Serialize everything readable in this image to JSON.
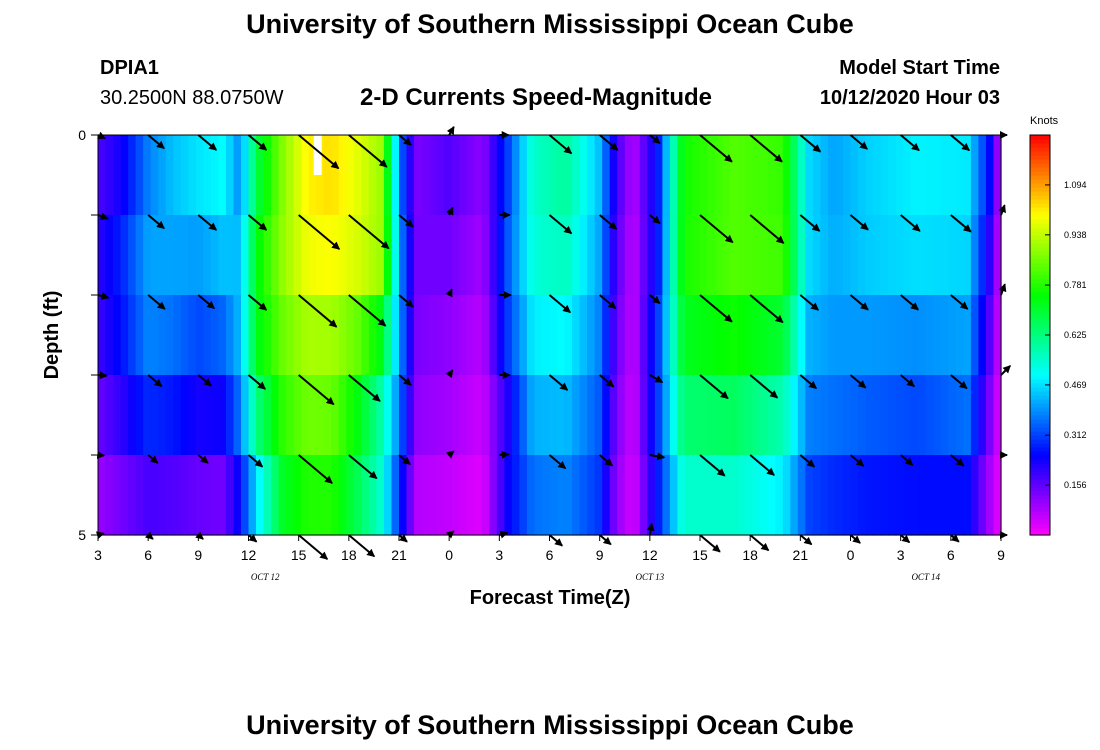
{
  "page": {
    "title_top": "University of Southern Mississippi Ocean Cube",
    "title_bottom": "University of Southern Mississippi Ocean Cube",
    "station_id": "DPIA1",
    "station_coords": "30.2500N 88.0750W",
    "chart_title": "2-D Currents Speed-Magnitude",
    "model_label": "Model Start Time",
    "model_time": "10/12/2020 Hour 03"
  },
  "chart_data": {
    "type": "heatmap",
    "title": "2-D Currents Speed-Magnitude",
    "xlabel": "Forecast Time(Z)",
    "ylabel": "Depth (ft)",
    "x_tick_labels": [
      "3",
      "6",
      "9",
      "12",
      "15",
      "18",
      "21",
      "0",
      "3",
      "6",
      "9",
      "12",
      "15",
      "18",
      "21",
      "0",
      "3",
      "6",
      "9"
    ],
    "x_range_hours": [
      0,
      54
    ],
    "date_labels": [
      {
        "text": "OCT 12",
        "hour": 10
      },
      {
        "text": "OCT 13",
        "hour": 33
      },
      {
        "text": "OCT 14",
        "hour": 49.5
      }
    ],
    "y_range": [
      0,
      5
    ],
    "y_tick_labels": [
      "0",
      "",
      "",
      "",
      "",
      "5"
    ],
    "colorbar": {
      "units": "Knots",
      "min": 0,
      "max": 1.25,
      "ticks": [
        "1.094",
        "0.938",
        "0.781",
        "0.625",
        "0.469",
        "0.312",
        "0.156"
      ],
      "tick_values": [
        1.094,
        0.938,
        0.781,
        0.625,
        0.469,
        0.312,
        0.156
      ]
    },
    "speed_keyframes": [
      {
        "hour": 0,
        "speeds": [
          0.15,
          0.2,
          0.21,
          0.17,
          0.12,
          0.08
        ]
      },
      {
        "hour": 1.5,
        "speeds": [
          0.2,
          0.28,
          0.3,
          0.24,
          0.18,
          0.1
        ]
      },
      {
        "hour": 3,
        "speeds": [
          0.35,
          0.4,
          0.42,
          0.34,
          0.24,
          0.12
        ]
      },
      {
        "hour": 4.5,
        "speeds": [
          0.46,
          0.42,
          0.4,
          0.32,
          0.22,
          0.12
        ]
      },
      {
        "hour": 6,
        "speeds": [
          0.5,
          0.45,
          0.36,
          0.28,
          0.18,
          0.12
        ]
      },
      {
        "hour": 7.5,
        "speeds": [
          0.52,
          0.48,
          0.4,
          0.3,
          0.18,
          0.1
        ]
      },
      {
        "hour": 8.5,
        "speeds": [
          0.35,
          0.42,
          0.45,
          0.42,
          0.32,
          0.2
        ]
      },
      {
        "hour": 9.5,
        "speeds": [
          0.65,
          0.72,
          0.75,
          0.7,
          0.55,
          0.4
        ]
      },
      {
        "hour": 11,
        "speeds": [
          0.85,
          0.9,
          0.88,
          0.82,
          0.76,
          0.66
        ]
      },
      {
        "hour": 12.5,
        "speeds": [
          1.0,
          1.02,
          0.95,
          0.88,
          0.84,
          0.72
        ]
      },
      {
        "hour": 14,
        "speeds": [
          1.02,
          1.04,
          0.96,
          0.86,
          0.84,
          0.72
        ]
      },
      {
        "hour": 15.5,
        "speeds": [
          0.95,
          1.0,
          0.92,
          0.78,
          0.7,
          0.64
        ]
      },
      {
        "hour": 17,
        "speeds": [
          0.85,
          0.95,
          0.85,
          0.6,
          0.56,
          0.52
        ]
      },
      {
        "hour": 18,
        "speeds": [
          0.35,
          0.4,
          0.42,
          0.4,
          0.34,
          0.25
        ]
      },
      {
        "hour": 19,
        "speeds": [
          0.12,
          0.14,
          0.14,
          0.12,
          0.1,
          0.05
        ]
      },
      {
        "hour": 21,
        "speeds": [
          0.18,
          0.16,
          0.12,
          0.1,
          0.08,
          0.04
        ]
      },
      {
        "hour": 23,
        "speeds": [
          0.12,
          0.1,
          0.08,
          0.06,
          0.04,
          0.02
        ]
      },
      {
        "hour": 24.5,
        "speeds": [
          0.3,
          0.32,
          0.35,
          0.26,
          0.18,
          0.3
        ]
      },
      {
        "hour": 26,
        "speeds": [
          0.55,
          0.55,
          0.52,
          0.45,
          0.4,
          0.32
        ]
      },
      {
        "hour": 28,
        "speeds": [
          0.62,
          0.58,
          0.55,
          0.45,
          0.42,
          0.34
        ]
      },
      {
        "hour": 30,
        "speeds": [
          0.45,
          0.42,
          0.4,
          0.35,
          0.32,
          0.28
        ]
      },
      {
        "hour": 31,
        "speeds": [
          0.2,
          0.18,
          0.16,
          0.14,
          0.12,
          0.1
        ]
      },
      {
        "hour": 32,
        "speeds": [
          0.08,
          0.06,
          0.06,
          0.05,
          0.04,
          0.03
        ]
      },
      {
        "hour": 33.5,
        "speeds": [
          0.3,
          0.25,
          0.3,
          0.32,
          0.3,
          0.25
        ]
      },
      {
        "hour": 35,
        "speeds": [
          0.75,
          0.78,
          0.76,
          0.68,
          0.6,
          0.5
        ]
      },
      {
        "hour": 38,
        "speeds": [
          0.82,
          0.84,
          0.82,
          0.7,
          0.62,
          0.48
        ]
      },
      {
        "hour": 41,
        "speeds": [
          0.78,
          0.82,
          0.8,
          0.6,
          0.55,
          0.42
        ]
      },
      {
        "hour": 42.5,
        "speeds": [
          0.45,
          0.48,
          0.45,
          0.4,
          0.35,
          0.28
        ]
      },
      {
        "hour": 44,
        "speeds": [
          0.4,
          0.42,
          0.42,
          0.38,
          0.34,
          0.24
        ]
      },
      {
        "hour": 46,
        "speeds": [
          0.45,
          0.46,
          0.44,
          0.36,
          0.32,
          0.22
        ]
      },
      {
        "hour": 49,
        "speeds": [
          0.48,
          0.5,
          0.44,
          0.34,
          0.3,
          0.22
        ]
      },
      {
        "hour": 52,
        "speeds": [
          0.46,
          0.5,
          0.42,
          0.4,
          0.32,
          0.2
        ]
      },
      {
        "hour": 53.5,
        "speeds": [
          0.25,
          0.2,
          0.15,
          0.12,
          0.08,
          0.05
        ]
      },
      {
        "hour": 54,
        "speeds": [
          0.02,
          0.02,
          0.02,
          0.02,
          0.02,
          0.01
        ]
      }
    ],
    "vectors": [
      {
        "hour": 0,
        "speeds": [
          0.15,
          0.2,
          0.21,
          0.17,
          0.12,
          0.08
        ],
        "angles_deg": [
          -25,
          -20,
          -15,
          -5,
          -5,
          15
        ]
      },
      {
        "hour": 3,
        "speeds": [
          0.4,
          0.4,
          0.42,
          0.34,
          0.24,
          0.12
        ],
        "angles_deg": [
          -40,
          -40,
          -40,
          -40,
          -40,
          -40
        ]
      },
      {
        "hour": 6,
        "speeds": [
          0.45,
          0.45,
          0.4,
          0.32,
          0.24,
          0.12
        ],
        "angles_deg": [
          -40,
          -40,
          -40,
          -40,
          -40,
          -40
        ]
      },
      {
        "hour": 9,
        "speeds": [
          0.45,
          0.45,
          0.45,
          0.42,
          0.35,
          0.2
        ],
        "angles_deg": [
          -40,
          -40,
          -40,
          -40,
          -40,
          -40
        ]
      },
      {
        "hour": 12,
        "speeds": [
          1.0,
          1.02,
          0.95,
          0.88,
          0.84,
          0.72
        ],
        "angles_deg": [
          -40,
          -40,
          -40,
          -40,
          -40,
          -40
        ]
      },
      {
        "hour": 15,
        "speeds": [
          0.95,
          1.0,
          0.92,
          0.78,
          0.7,
          0.64
        ],
        "angles_deg": [
          -40,
          -40,
          -40,
          -40,
          -40,
          -40
        ]
      },
      {
        "hour": 18,
        "speeds": [
          0.3,
          0.35,
          0.35,
          0.3,
          0.28,
          0.2
        ],
        "angles_deg": [
          -40,
          -40,
          -40,
          -40,
          -40,
          -40
        ]
      },
      {
        "hour": 21,
        "speeds": [
          0.18,
          0.16,
          0.12,
          0.1,
          0.08,
          0.04
        ],
        "angles_deg": [
          60,
          65,
          65,
          55,
          40,
          40
        ]
      },
      {
        "hour": 24,
        "speeds": [
          0.18,
          0.2,
          0.22,
          0.2,
          0.18,
          0.16
        ],
        "angles_deg": [
          0,
          0,
          0,
          0,
          5,
          15
        ]
      },
      {
        "hour": 27,
        "speeds": [
          0.55,
          0.55,
          0.52,
          0.45,
          0.4,
          0.32
        ],
        "angles_deg": [
          -40,
          -40,
          -40,
          -40,
          -40,
          -40
        ]
      },
      {
        "hour": 30,
        "speeds": [
          0.45,
          0.42,
          0.4,
          0.35,
          0.32,
          0.28
        ],
        "angles_deg": [
          -40,
          -40,
          -40,
          -40,
          -40,
          -40
        ]
      },
      {
        "hour": 33,
        "speeds": [
          0.25,
          0.25,
          0.25,
          0.28,
          0.28,
          0.22
        ],
        "angles_deg": [
          -40,
          -40,
          -40,
          -30,
          -10,
          80
        ]
      },
      {
        "hour": 36,
        "speeds": [
          0.8,
          0.82,
          0.8,
          0.7,
          0.62,
          0.5
        ],
        "angles_deg": [
          -40,
          -40,
          -40,
          -40,
          -40,
          -40
        ]
      },
      {
        "hour": 39,
        "speeds": [
          0.8,
          0.84,
          0.82,
          0.68,
          0.6,
          0.46
        ],
        "angles_deg": [
          -40,
          -40,
          -40,
          -40,
          -40,
          -40
        ]
      },
      {
        "hour": 42,
        "speeds": [
          0.5,
          0.48,
          0.45,
          0.4,
          0.35,
          0.28
        ],
        "angles_deg": [
          -40,
          -40,
          -40,
          -40,
          -40,
          -40
        ]
      },
      {
        "hour": 45,
        "speeds": [
          0.42,
          0.44,
          0.44,
          0.38,
          0.33,
          0.24
        ],
        "angles_deg": [
          -40,
          -40,
          -40,
          -40,
          -40,
          -40
        ]
      },
      {
        "hour": 48,
        "speeds": [
          0.46,
          0.48,
          0.44,
          0.34,
          0.3,
          0.22
        ],
        "angles_deg": [
          -40,
          -40,
          -40,
          -40,
          -40,
          -40
        ]
      },
      {
        "hour": 51,
        "speeds": [
          0.46,
          0.5,
          0.42,
          0.4,
          0.32,
          0.2
        ],
        "angles_deg": [
          -40,
          -40,
          -40,
          -40,
          -40,
          -40
        ]
      },
      {
        "hour": 54,
        "speeds": [
          0.02,
          0.2,
          0.22,
          0.25,
          0.02,
          0.02
        ],
        "angles_deg": [
          0,
          70,
          70,
          45,
          0,
          0
        ]
      }
    ],
    "colors": {
      "arrow": "#000000",
      "missing": "#ffffff"
    }
  }
}
